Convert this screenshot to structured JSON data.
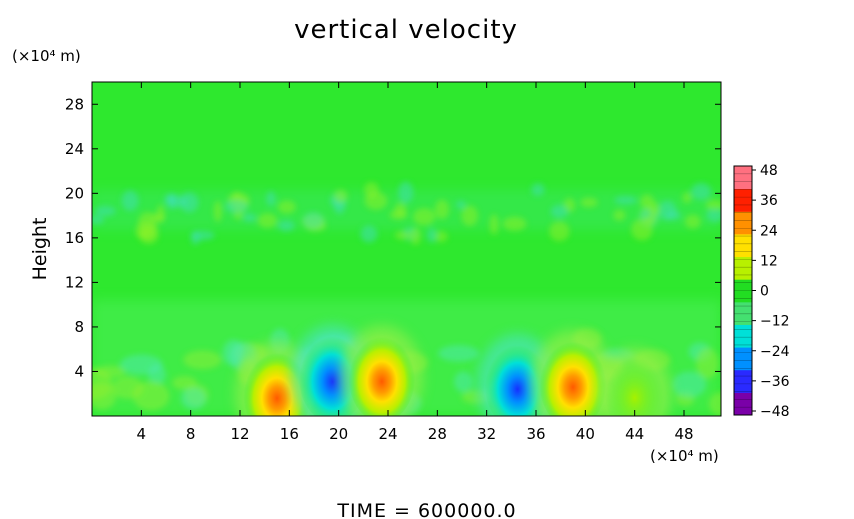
{
  "chart_data": {
    "type": "heatmap",
    "title": "vertical velocity",
    "ylabel": "Height",
    "x_unit": "(×10⁴ m)",
    "y_unit": "(×10⁴ m)",
    "xlim": [
      0,
      51
    ],
    "ylim": [
      0,
      30
    ],
    "x_ticks": [
      "4",
      "8",
      "12",
      "16",
      "20",
      "24",
      "28",
      "32",
      "36",
      "40",
      "44",
      "48"
    ],
    "y_ticks": [
      "4",
      "8",
      "12",
      "16",
      "20",
      "24",
      "28"
    ],
    "colorbar": {
      "min": -48,
      "max": 48,
      "ticks": [
        "48",
        "36",
        "24",
        "12",
        "0",
        "−12",
        "−24",
        "−36",
        "−48"
      ],
      "colors": [
        "#7a00a8",
        "#2a2aff",
        "#0090ff",
        "#00e0d8",
        "#44e070",
        "#22dd22",
        "#b8f000",
        "#ffe000",
        "#ff9000",
        "#ff2000",
        "#ff7080"
      ]
    },
    "features": [
      {
        "x": 15,
        "y": 2,
        "value": 30,
        "label": "updraft"
      },
      {
        "x": 19.5,
        "y": 3.5,
        "value": -30,
        "label": "downdraft"
      },
      {
        "x": 23.5,
        "y": 3.5,
        "value": 28,
        "label": "updraft"
      },
      {
        "x": 34.5,
        "y": 2.8,
        "value": -25,
        "label": "downdraft"
      },
      {
        "x": 39,
        "y": 3,
        "value": 30,
        "label": "updraft"
      },
      {
        "x": 44,
        "y": 2,
        "value": 8,
        "label": "weak updraft"
      }
    ],
    "footer": "TIME  =  600000.0"
  }
}
